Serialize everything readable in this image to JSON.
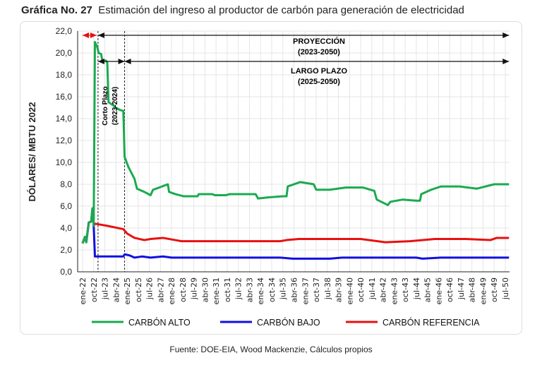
{
  "title": {
    "label": "Gráfica No. 27",
    "text": "Estimación del ingreso al productor de carbón para generación de electricidad"
  },
  "source": "Fuente: DOE-EIA, Wood Mackenzie, Cálculos propios",
  "chart_data": {
    "type": "line",
    "title": "Estimación del ingreso al productor de carbón para generación de electricidad",
    "xlabel": "",
    "ylabel": "DÓLARES/ MBTU 2022",
    "ylim": [
      0,
      22
    ],
    "yticks": [
      "0,0",
      "2,0",
      "4,0",
      "6,0",
      "8,0",
      "10,0",
      "12,0",
      "14,0",
      "16,0",
      "18,0",
      "20,0",
      "22,0"
    ],
    "x_unit": "months since ene-22",
    "xlim": [
      0,
      345
    ],
    "xticks": [
      "ene-22",
      "oct-22",
      "jul-23",
      "abr-24",
      "ene-25",
      "oct-25",
      "jul-26",
      "abr-27",
      "ene-28",
      "oct-28",
      "jul-29",
      "abr-30",
      "ene-31",
      "oct-31",
      "jul-32",
      "abr-33",
      "ene-34",
      "oct-34",
      "jul-35",
      "abr-36",
      "ene-37",
      "oct-37",
      "jul-38",
      "abr-39",
      "ene-40",
      "oct-40",
      "jul-41",
      "abr-42",
      "ene-43",
      "oct-43",
      "jul-44",
      "abr-45",
      "ene-46",
      "oct-46",
      "jul-47",
      "abr-48",
      "ene-49",
      "oct-49",
      "jul-50"
    ],
    "grid": true,
    "legend_position": "bottom",
    "series": [
      {
        "name": "CARBÓN ALTO",
        "color": "#1aaa50",
        "points": [
          [
            0,
            2.6
          ],
          [
            2,
            3.2
          ],
          [
            3,
            2.7
          ],
          [
            5,
            4.5
          ],
          [
            7,
            4.6
          ],
          [
            8,
            5.8
          ],
          [
            9,
            4.2
          ],
          [
            10,
            21.0
          ],
          [
            12,
            20.5
          ],
          [
            13,
            20.0
          ],
          [
            15,
            19.9
          ],
          [
            16,
            19.3
          ],
          [
            19,
            19.3
          ],
          [
            20,
            19.1
          ],
          [
            21,
            15.5
          ],
          [
            25,
            15.2
          ],
          [
            27,
            15.0
          ],
          [
            30,
            14.8
          ],
          [
            33,
            14.7
          ],
          [
            34,
            10.5
          ],
          [
            37,
            9.6
          ],
          [
            42,
            8.5
          ],
          [
            44,
            7.6
          ],
          [
            50,
            7.3
          ],
          [
            55,
            7.0
          ],
          [
            57,
            7.5
          ],
          [
            62,
            7.7
          ],
          [
            69,
            8.0
          ],
          [
            70,
            7.3
          ],
          [
            75,
            7.1
          ],
          [
            82,
            6.9
          ],
          [
            93,
            6.9
          ],
          [
            94,
            7.1
          ],
          [
            105,
            7.1
          ],
          [
            107,
            7.0
          ],
          [
            116,
            7.0
          ],
          [
            119,
            7.1
          ],
          [
            140,
            7.1
          ],
          [
            142,
            6.7
          ],
          [
            150,
            6.8
          ],
          [
            162,
            6.9
          ],
          [
            165,
            6.9
          ],
          [
            166,
            7.8
          ],
          [
            176,
            8.2
          ],
          [
            187,
            8.0
          ],
          [
            189,
            7.5
          ],
          [
            200,
            7.5
          ],
          [
            213,
            7.7
          ],
          [
            227,
            7.7
          ],
          [
            236,
            7.4
          ],
          [
            238,
            6.6
          ],
          [
            247,
            6.1
          ],
          [
            249,
            6.4
          ],
          [
            259,
            6.6
          ],
          [
            270,
            6.5
          ],
          [
            273,
            6.5
          ],
          [
            274,
            7.1
          ],
          [
            282,
            7.5
          ],
          [
            290,
            7.8
          ],
          [
            305,
            7.8
          ],
          [
            319,
            7.6
          ],
          [
            333,
            8.0
          ],
          [
            345,
            8.0
          ]
        ]
      },
      {
        "name": "CARBÓN BAJO",
        "color": "#1010e0",
        "points": [
          [
            0,
            2.6
          ],
          [
            2,
            3.2
          ],
          [
            3,
            2.7
          ],
          [
            5,
            4.5
          ],
          [
            7,
            4.6
          ],
          [
            8,
            5.8
          ],
          [
            9,
            4.2
          ],
          [
            10,
            1.4
          ],
          [
            20,
            1.4
          ],
          [
            33,
            1.4
          ],
          [
            34,
            1.6
          ],
          [
            38,
            1.5
          ],
          [
            42,
            1.3
          ],
          [
            48,
            1.4
          ],
          [
            55,
            1.3
          ],
          [
            65,
            1.4
          ],
          [
            72,
            1.3
          ],
          [
            160,
            1.3
          ],
          [
            170,
            1.2
          ],
          [
            200,
            1.2
          ],
          [
            210,
            1.3
          ],
          [
            240,
            1.3
          ],
          [
            270,
            1.3
          ],
          [
            275,
            1.2
          ],
          [
            290,
            1.3
          ],
          [
            345,
            1.3
          ]
        ]
      },
      {
        "name": "CARBÓN REFERENCIA",
        "color": "#e81010",
        "points": [
          [
            0,
            2.6
          ],
          [
            2,
            3.2
          ],
          [
            3,
            2.7
          ],
          [
            5,
            4.5
          ],
          [
            7,
            4.6
          ],
          [
            8,
            5.8
          ],
          [
            9,
            4.2
          ],
          [
            10,
            4.4
          ],
          [
            20,
            4.2
          ],
          [
            33,
            3.9
          ],
          [
            36,
            3.5
          ],
          [
            42,
            3.1
          ],
          [
            50,
            2.9
          ],
          [
            55,
            3.0
          ],
          [
            65,
            3.1
          ],
          [
            75,
            2.9
          ],
          [
            80,
            2.8
          ],
          [
            160,
            2.8
          ],
          [
            165,
            2.9
          ],
          [
            175,
            3.0
          ],
          [
            225,
            3.0
          ],
          [
            245,
            2.7
          ],
          [
            265,
            2.8
          ],
          [
            285,
            3.0
          ],
          [
            310,
            3.0
          ],
          [
            330,
            2.9
          ],
          [
            335,
            3.1
          ],
          [
            345,
            3.1
          ]
        ]
      }
    ],
    "annotations": [
      {
        "text": "PROYECCIÓN",
        "sub": "(2023-2050)",
        "from": 12.5,
        "to": 345
      },
      {
        "text": "LARGO PLAZO",
        "sub": "(2025-2050)",
        "from": 34,
        "to": 345
      },
      {
        "text": "Corto Plazo",
        "sub": "(2023-2024)",
        "from": 12.5,
        "to": 34
      },
      {
        "text": "",
        "sub": "",
        "from": 0,
        "to": 12.5
      }
    ]
  }
}
